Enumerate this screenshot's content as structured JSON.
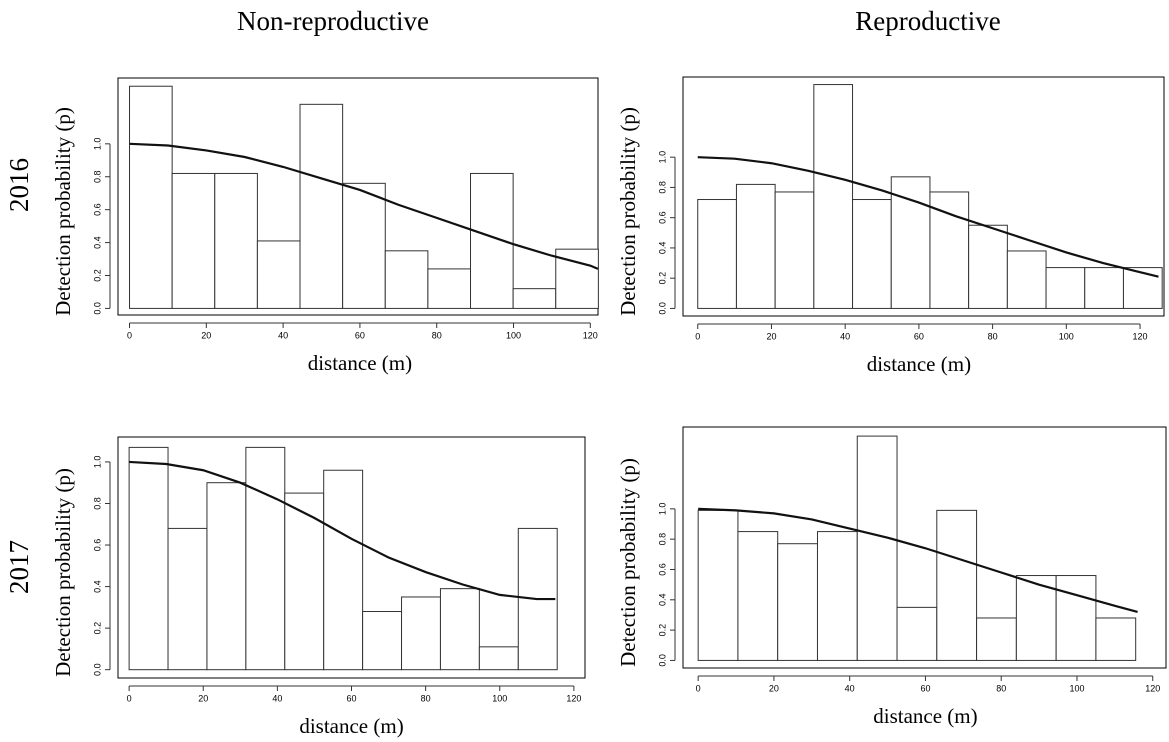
{
  "column_labels": [
    "Non-reproductive",
    "Reproductive"
  ],
  "row_labels": [
    "2016",
    "2017"
  ],
  "chart_data": [
    {
      "type": "histogram",
      "x_label": "distance (m)",
      "y_label": "Detection probability (p)",
      "bins": [
        0,
        11.1,
        22.2,
        33.3,
        44.4,
        55.5,
        66.6,
        77.7,
        88.8,
        99.9,
        111,
        122.1
      ],
      "values": [
        1.35,
        0.82,
        0.82,
        0.41,
        1.24,
        0.76,
        0.35,
        0.24,
        0.82,
        0.12,
        0.36
      ],
      "curve": {
        "x": [
          0,
          10,
          20,
          30,
          40,
          50,
          60,
          70,
          80,
          90,
          100,
          110,
          120,
          122
        ],
        "values": [
          1,
          0.99,
          0.96,
          0.92,
          0.86,
          0.79,
          0.72,
          0.63,
          0.55,
          0.47,
          0.39,
          0.32,
          0.26,
          0.24
        ]
      },
      "xlim": [
        -3,
        122
      ],
      "ylim": [
        -0.04,
        1.4
      ],
      "xticks": [
        0,
        20,
        40,
        60,
        80,
        100,
        120
      ],
      "yticks": [
        {
          "value": 0,
          "label": "0.0"
        },
        0.2,
        0.4,
        0.6,
        0.8,
        {
          "value": 1,
          "label": "1.0"
        }
      ]
    },
    {
      "type": "histogram",
      "x_label": "distance (m)",
      "y_label": "Detection probability (p)",
      "bins": [
        0,
        10.5,
        21,
        31.5,
        42,
        52.5,
        63,
        73.5,
        84,
        94.5,
        105,
        115.5,
        126
      ],
      "values": [
        0.72,
        0.82,
        0.77,
        1.48,
        0.72,
        0.87,
        0.77,
        0.55,
        0.38,
        0.27,
        0.27,
        0.27
      ],
      "curve": {
        "x": [
          0,
          10,
          20,
          30,
          40,
          50,
          60,
          70,
          80,
          90,
          100,
          110,
          120,
          125
        ],
        "values": [
          1,
          0.99,
          0.96,
          0.91,
          0.85,
          0.78,
          0.7,
          0.61,
          0.53,
          0.45,
          0.37,
          0.3,
          0.24,
          0.21
        ]
      },
      "xlim": [
        -4,
        126.5
      ],
      "ylim": [
        -0.05,
        1.53
      ],
      "xticks": [
        0,
        20,
        40,
        60,
        80,
        100,
        120
      ],
      "yticks": [
        {
          "value": 0,
          "label": "0.0"
        },
        0.2,
        0.4,
        0.6,
        0.8,
        {
          "value": 1,
          "label": "1.0"
        }
      ]
    },
    {
      "type": "histogram",
      "x_label": "distance (m)",
      "y_label": "Detection probability (p)",
      "bins": [
        0,
        10.5,
        21,
        31.5,
        42,
        52.5,
        63,
        73.5,
        84,
        94.5,
        105,
        115.5
      ],
      "values": [
        1.07,
        0.68,
        0.9,
        1.07,
        0.85,
        0.96,
        0.28,
        0.35,
        0.39,
        0.11,
        0.68
      ],
      "curve": {
        "x": [
          0,
          10,
          20,
          30,
          40,
          50,
          60,
          70,
          80,
          90,
          100,
          110,
          115
        ],
        "values": [
          1,
          0.99,
          0.96,
          0.9,
          0.82,
          0.73,
          0.63,
          0.54,
          0.47,
          0.41,
          0.36,
          0.34,
          0.34
        ]
      },
      "xlim": [
        -3,
        123
      ],
      "ylim": [
        -0.04,
        1.12
      ],
      "xticks": [
        0,
        20,
        40,
        60,
        80,
        100,
        120
      ],
      "yticks": [
        {
          "value": 0,
          "label": "0.0"
        },
        0.2,
        0.4,
        0.6,
        0.8,
        {
          "value": 1,
          "label": "1.0"
        }
      ]
    },
    {
      "type": "histogram",
      "x_label": "distance (m)",
      "y_label": "Detection probability (p)",
      "bins": [
        0,
        10.5,
        21,
        31.5,
        42,
        52.5,
        63,
        73.5,
        84,
        94.5,
        105,
        115.5
      ],
      "values": [
        0.99,
        0.85,
        0.77,
        0.85,
        1.48,
        0.35,
        0.99,
        0.28,
        0.56,
        0.56,
        0.28
      ],
      "curve": {
        "x": [
          0,
          10,
          20,
          30,
          40,
          50,
          60,
          70,
          80,
          90,
          100,
          110,
          116
        ],
        "values": [
          1,
          0.99,
          0.97,
          0.93,
          0.87,
          0.81,
          0.74,
          0.66,
          0.58,
          0.5,
          0.43,
          0.36,
          0.32
        ]
      },
      "xlim": [
        -4,
        123.5
      ],
      "ylim": [
        -0.05,
        1.54
      ],
      "xticks": [
        0,
        20,
        40,
        60,
        80,
        100,
        120
      ],
      "yticks": [
        {
          "value": 0,
          "label": "0.0"
        },
        0.2,
        0.4,
        0.6,
        0.8,
        {
          "value": 1,
          "label": "1.0"
        }
      ]
    }
  ]
}
